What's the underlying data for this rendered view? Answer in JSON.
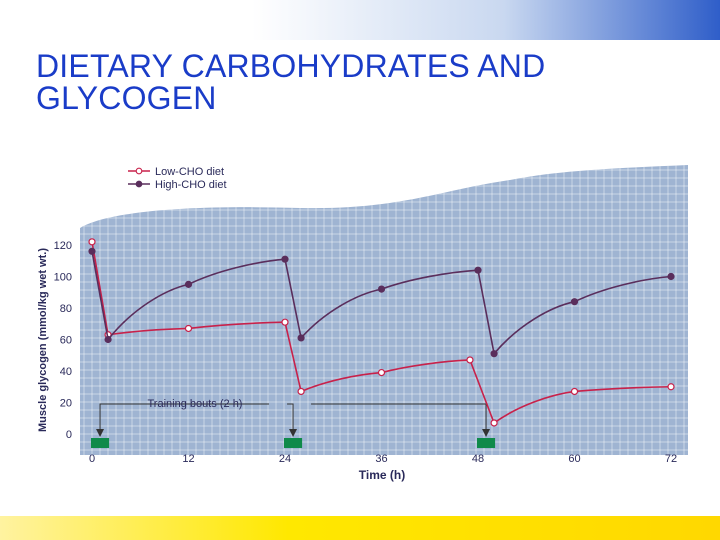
{
  "slide": {
    "title_line1": "DIETARY CARBOHYDRATES AND",
    "title_line2": "GLYCOGEN"
  },
  "colors": {
    "title": "#1a3cc8",
    "low_cho": "#c8214a",
    "high_cho": "#5a2e5c",
    "panel": "#9fb4d2",
    "training_bar": "#0f8a4a"
  },
  "chart_data": {
    "type": "line",
    "xlabel": "Time (h)",
    "ylabel": "Muscle glycogen (mmol/kg wet wt.)",
    "xlim": [
      0,
      72
    ],
    "ylim": [
      0,
      120
    ],
    "x_ticks": [
      0,
      12,
      24,
      36,
      48,
      60,
      72
    ],
    "y_ticks": [
      0,
      20,
      40,
      60,
      80,
      100,
      120
    ],
    "legend_position": "top-left",
    "series": [
      {
        "name": "Low-CHO diet",
        "marker": "open-circle",
        "color": "#c8214a",
        "points": [
          [
            0,
            122
          ],
          [
            2,
            63
          ],
          [
            12,
            67
          ],
          [
            24,
            71
          ],
          [
            26,
            27
          ],
          [
            36,
            39
          ],
          [
            47,
            47
          ],
          [
            50,
            7
          ],
          [
            60,
            27
          ],
          [
            72,
            30
          ]
        ]
      },
      {
        "name": "High-CHO diet",
        "marker": "filled-circle",
        "color": "#5a2e5c",
        "points": [
          [
            0,
            116
          ],
          [
            2,
            60
          ],
          [
            12,
            95
          ],
          [
            24,
            111
          ],
          [
            26,
            61
          ],
          [
            36,
            92
          ],
          [
            48,
            104
          ],
          [
            50,
            51
          ],
          [
            60,
            84
          ],
          [
            72,
            100
          ]
        ]
      }
    ],
    "annotation": {
      "text": "Training bouts (2 h)",
      "bouts": [
        [
          0,
          2
        ],
        [
          24,
          26
        ],
        [
          48,
          50
        ]
      ]
    }
  }
}
